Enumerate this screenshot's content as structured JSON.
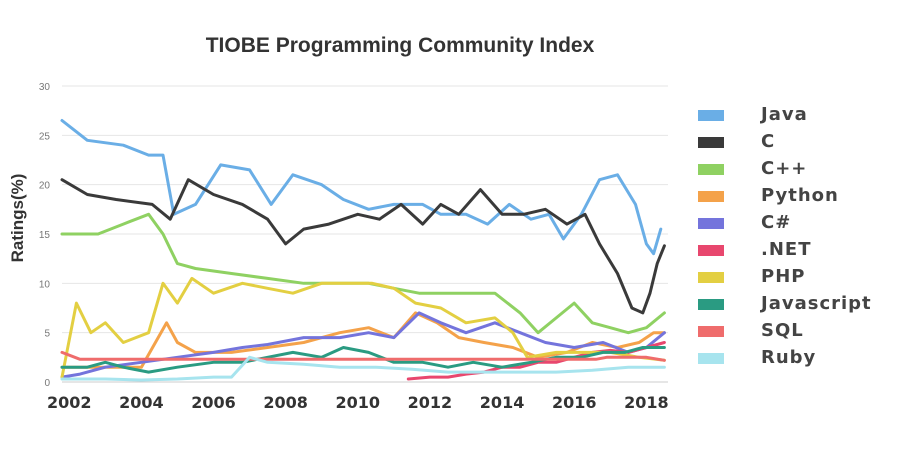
{
  "chart_data": {
    "type": "line",
    "title": "TIOBE Programming Community Index",
    "xlabel": "",
    "ylabel": "Ratings(%)",
    "ylim": [
      0,
      30
    ],
    "xlim": [
      2001.8,
      2018.6
    ],
    "yticks": [
      "0",
      "5",
      "10",
      "15",
      "20",
      "25",
      "30"
    ],
    "xticks": [
      "2002",
      "2004",
      "2006",
      "2008",
      "2010",
      "2012",
      "2014",
      "2016",
      "2018"
    ],
    "grid": "horizontal",
    "legend_position": "right",
    "series": [
      {
        "name": "Java",
        "color": "#6aaee6",
        "points": [
          [
            2001.8,
            26.5
          ],
          [
            2002.5,
            24.5
          ],
          [
            2003.5,
            24
          ],
          [
            2004.2,
            23
          ],
          [
            2004.6,
            23
          ],
          [
            2004.9,
            17
          ],
          [
            2005.5,
            18
          ],
          [
            2006.2,
            22
          ],
          [
            2007,
            21.5
          ],
          [
            2007.6,
            18
          ],
          [
            2008.2,
            21
          ],
          [
            2009,
            20
          ],
          [
            2009.6,
            18.5
          ],
          [
            2010.3,
            17.5
          ],
          [
            2011,
            18
          ],
          [
            2011.8,
            18
          ],
          [
            2012.3,
            17
          ],
          [
            2013,
            17
          ],
          [
            2013.6,
            16
          ],
          [
            2014.2,
            18
          ],
          [
            2014.8,
            16.5
          ],
          [
            2015.3,
            17
          ],
          [
            2015.7,
            14.5
          ],
          [
            2016.2,
            17
          ],
          [
            2016.7,
            20.5
          ],
          [
            2017.2,
            21
          ],
          [
            2017.7,
            18
          ],
          [
            2018.0,
            14
          ],
          [
            2018.2,
            13
          ],
          [
            2018.4,
            15.5
          ]
        ]
      },
      {
        "name": "C",
        "color": "#3a3a3a",
        "points": [
          [
            2001.8,
            20.5
          ],
          [
            2002.5,
            19
          ],
          [
            2003.3,
            18.5
          ],
          [
            2004.3,
            18
          ],
          [
            2004.8,
            16.5
          ],
          [
            2005.3,
            20.5
          ],
          [
            2006,
            19
          ],
          [
            2006.8,
            18
          ],
          [
            2007.5,
            16.5
          ],
          [
            2008,
            14
          ],
          [
            2008.5,
            15.5
          ],
          [
            2009.2,
            16
          ],
          [
            2010,
            17
          ],
          [
            2010.6,
            16.5
          ],
          [
            2011.2,
            18
          ],
          [
            2011.8,
            16
          ],
          [
            2012.3,
            18
          ],
          [
            2012.8,
            17
          ],
          [
            2013.4,
            19.5
          ],
          [
            2014,
            17
          ],
          [
            2014.6,
            17
          ],
          [
            2015.2,
            17.5
          ],
          [
            2015.8,
            16
          ],
          [
            2016.3,
            17
          ],
          [
            2016.7,
            14
          ],
          [
            2017.2,
            11
          ],
          [
            2017.6,
            7.5
          ],
          [
            2017.9,
            7
          ],
          [
            2018.1,
            9
          ],
          [
            2018.3,
            12
          ],
          [
            2018.5,
            13.8
          ]
        ]
      },
      {
        "name": "C++",
        "color": "#8fd162",
        "points": [
          [
            2001.8,
            15
          ],
          [
            2002.8,
            15
          ],
          [
            2003.5,
            16
          ],
          [
            2004.2,
            17
          ],
          [
            2004.6,
            15
          ],
          [
            2005,
            12
          ],
          [
            2005.5,
            11.5
          ],
          [
            2006.5,
            11
          ],
          [
            2007.5,
            10.5
          ],
          [
            2008.5,
            10
          ],
          [
            2009.5,
            10
          ],
          [
            2010.3,
            10
          ],
          [
            2011,
            9.5
          ],
          [
            2011.7,
            9
          ],
          [
            2012.3,
            9
          ],
          [
            2013,
            9
          ],
          [
            2013.8,
            9
          ],
          [
            2014.5,
            7
          ],
          [
            2015,
            5
          ],
          [
            2015.5,
            6.5
          ],
          [
            2016,
            8
          ],
          [
            2016.5,
            6
          ],
          [
            2017,
            5.5
          ],
          [
            2017.5,
            5
          ],
          [
            2018,
            5.5
          ],
          [
            2018.5,
            7
          ]
        ]
      },
      {
        "name": "Python",
        "color": "#f4a24a",
        "points": [
          [
            2001.8,
            1.5
          ],
          [
            2003,
            1.5
          ],
          [
            2004,
            1.5
          ],
          [
            2004.7,
            6
          ],
          [
            2005,
            4
          ],
          [
            2005.5,
            3
          ],
          [
            2006.5,
            3
          ],
          [
            2007.5,
            3.5
          ],
          [
            2008.5,
            4
          ],
          [
            2009.5,
            5
          ],
          [
            2010.3,
            5.5
          ],
          [
            2011,
            4.5
          ],
          [
            2011.6,
            7
          ],
          [
            2012.2,
            6
          ],
          [
            2012.8,
            4.5
          ],
          [
            2013.5,
            4
          ],
          [
            2014.3,
            3.5
          ],
          [
            2015,
            2.5
          ],
          [
            2015.8,
            3
          ],
          [
            2016.5,
            4
          ],
          [
            2017.2,
            3.5
          ],
          [
            2017.8,
            4
          ],
          [
            2018.2,
            5
          ],
          [
            2018.5,
            5
          ]
        ]
      },
      {
        "name": "C#",
        "color": "#7474dc",
        "points": [
          [
            2001.8,
            0.5
          ],
          [
            2002.3,
            0.8
          ],
          [
            2003,
            1.5
          ],
          [
            2004,
            2
          ],
          [
            2005,
            2.5
          ],
          [
            2006,
            3
          ],
          [
            2006.8,
            3.5
          ],
          [
            2007.5,
            3.8
          ],
          [
            2008.5,
            4.5
          ],
          [
            2009.5,
            4.5
          ],
          [
            2010.3,
            5
          ],
          [
            2011,
            4.5
          ],
          [
            2011.7,
            7
          ],
          [
            2012.3,
            6
          ],
          [
            2013,
            5
          ],
          [
            2013.8,
            6
          ],
          [
            2014.5,
            5
          ],
          [
            2015.2,
            4
          ],
          [
            2016,
            3.5
          ],
          [
            2016.8,
            4
          ],
          [
            2017.5,
            3
          ],
          [
            2018,
            3.5
          ],
          [
            2018.5,
            5
          ]
        ]
      },
      {
        "name": ".NET",
        "color": "#e8476e",
        "points": [
          [
            2011.4,
            0.3
          ],
          [
            2012,
            0.5
          ],
          [
            2012.5,
            0.5
          ],
          [
            2013,
            0.8
          ],
          [
            2013.5,
            1
          ],
          [
            2014,
            1.5
          ],
          [
            2014.5,
            1.5
          ],
          [
            2015,
            2
          ],
          [
            2015.5,
            2
          ],
          [
            2016,
            2.5
          ],
          [
            2016.5,
            3
          ],
          [
            2017,
            3.2
          ],
          [
            2017.5,
            3
          ],
          [
            2018,
            3.5
          ],
          [
            2018.5,
            4
          ]
        ]
      },
      {
        "name": "PHP",
        "color": "#e3cf42",
        "points": [
          [
            2001.8,
            0.5
          ],
          [
            2002.2,
            8
          ],
          [
            2002.6,
            5
          ],
          [
            2003,
            6
          ],
          [
            2003.5,
            4
          ],
          [
            2004.2,
            5
          ],
          [
            2004.6,
            10
          ],
          [
            2005,
            8
          ],
          [
            2005.4,
            10.5
          ],
          [
            2006,
            9
          ],
          [
            2006.8,
            10
          ],
          [
            2007.5,
            9.5
          ],
          [
            2008.2,
            9
          ],
          [
            2009,
            10
          ],
          [
            2009.8,
            10
          ],
          [
            2010.4,
            10
          ],
          [
            2011,
            9.5
          ],
          [
            2011.6,
            8
          ],
          [
            2012.3,
            7.5
          ],
          [
            2013,
            6
          ],
          [
            2013.8,
            6.5
          ],
          [
            2014.3,
            5
          ],
          [
            2014.7,
            2.5
          ],
          [
            2015.5,
            3
          ],
          [
            2016.2,
            3
          ],
          [
            2017,
            3
          ],
          [
            2017.8,
            2.5
          ],
          [
            2018.5,
            2.2
          ]
        ]
      },
      {
        "name": "Javascript",
        "color": "#2a9b82",
        "points": [
          [
            2001.8,
            1.5
          ],
          [
            2002.5,
            1.5
          ],
          [
            2003,
            2
          ],
          [
            2003.5,
            1.5
          ],
          [
            2004.2,
            1
          ],
          [
            2005,
            1.5
          ],
          [
            2006,
            2
          ],
          [
            2006.8,
            2
          ],
          [
            2007.5,
            2.5
          ],
          [
            2008.2,
            3
          ],
          [
            2009,
            2.5
          ],
          [
            2009.6,
            3.5
          ],
          [
            2010.3,
            3
          ],
          [
            2011,
            2
          ],
          [
            2011.8,
            2
          ],
          [
            2012.5,
            1.5
          ],
          [
            2013.2,
            2
          ],
          [
            2014,
            1.5
          ],
          [
            2014.8,
            2
          ],
          [
            2015.5,
            2.5
          ],
          [
            2016.2,
            2.5
          ],
          [
            2016.8,
            3
          ],
          [
            2017.4,
            3
          ],
          [
            2017.9,
            3.5
          ],
          [
            2018.5,
            3.5
          ]
        ]
      },
      {
        "name": "SQL",
        "color": "#ef6c6c",
        "points": [
          [
            2001.8,
            3
          ],
          [
            2002.3,
            2.3
          ],
          [
            2003,
            2.3
          ],
          [
            2004,
            2.3
          ],
          [
            2005,
            2.3
          ],
          [
            2007,
            2.3
          ],
          [
            2009,
            2.3
          ],
          [
            2011,
            2.3
          ],
          [
            2013,
            2.3
          ],
          [
            2015,
            2.3
          ],
          [
            2016,
            2.3
          ],
          [
            2016.6,
            2.3
          ],
          [
            2016.9,
            2.5
          ],
          [
            2017.5,
            2.5
          ],
          [
            2018,
            2.5
          ],
          [
            2018.5,
            2.2
          ]
        ]
      },
      {
        "name": "Ruby",
        "color": "#a7e4ee",
        "points": [
          [
            2001.8,
            0.3
          ],
          [
            2003,
            0.3
          ],
          [
            2004,
            0.2
          ],
          [
            2005,
            0.3
          ],
          [
            2006,
            0.5
          ],
          [
            2006.5,
            0.5
          ],
          [
            2007,
            2.5
          ],
          [
            2007.5,
            2
          ],
          [
            2008.5,
            1.8
          ],
          [
            2009.5,
            1.5
          ],
          [
            2010.5,
            1.5
          ],
          [
            2011.5,
            1.3
          ],
          [
            2012.5,
            1
          ],
          [
            2013.5,
            1
          ],
          [
            2014.5,
            1
          ],
          [
            2015.5,
            1
          ],
          [
            2016.5,
            1.2
          ],
          [
            2017.5,
            1.5
          ],
          [
            2018,
            1.5
          ],
          [
            2018.5,
            1.5
          ]
        ]
      }
    ]
  }
}
